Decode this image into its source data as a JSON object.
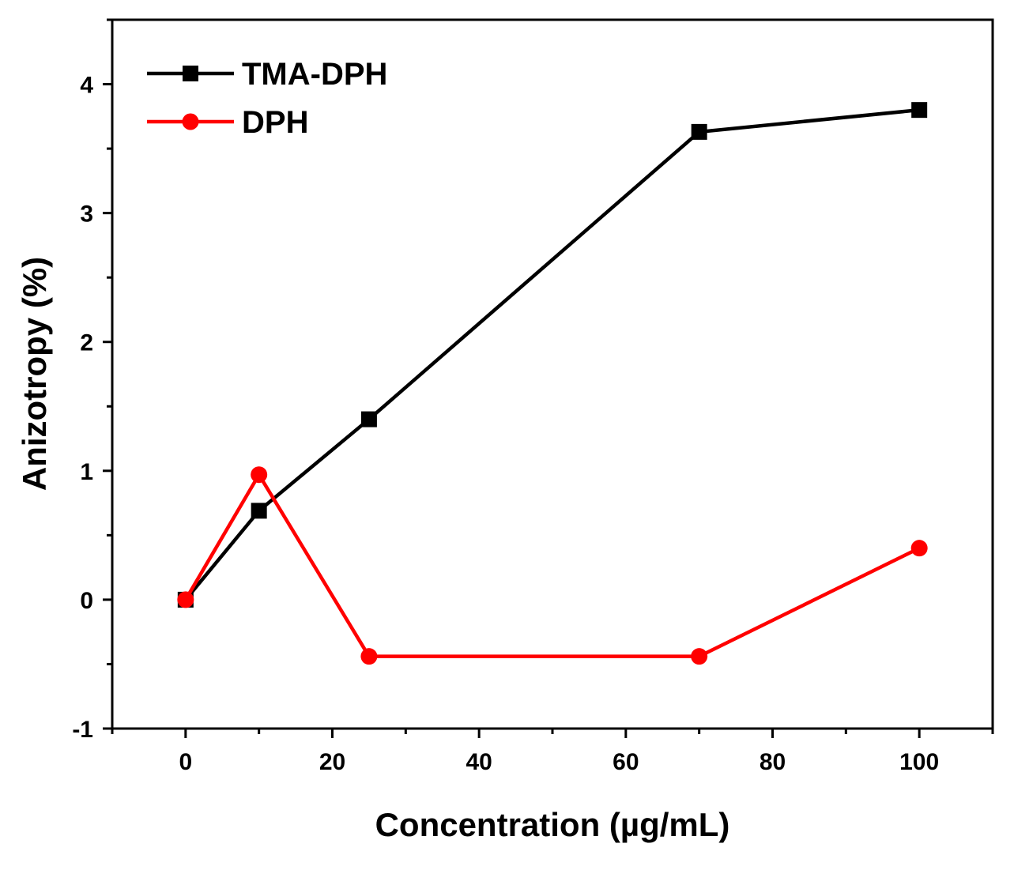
{
  "chart_data": {
    "type": "line",
    "title": "",
    "xlabel": "Concentration (µg/mL)",
    "ylabel": "Anizotropy (%)",
    "xlim": [
      -10,
      110
    ],
    "ylim": [
      -1,
      4.5
    ],
    "x_ticks": [
      0,
      20,
      40,
      60,
      80,
      100
    ],
    "x_tick_labels": [
      "0",
      "20",
      "40",
      "60",
      "80",
      "100"
    ],
    "y_ticks": [
      -1,
      0,
      1,
      2,
      3,
      4
    ],
    "y_tick_labels": [
      "-1",
      "0",
      "1",
      "2",
      "3",
      "4"
    ],
    "grid": false,
    "legend_position": "top-left",
    "series": [
      {
        "name": "TMA-DPH",
        "marker": "square",
        "color": "#000000",
        "x": [
          0,
          10,
          25,
          70,
          100
        ],
        "values": [
          0.0,
          0.69,
          1.4,
          3.63,
          3.8
        ]
      },
      {
        "name": "DPH",
        "marker": "circle",
        "color": "#ff0000",
        "x": [
          0,
          10,
          25,
          70,
          100
        ],
        "values": [
          0.0,
          0.97,
          -0.44,
          -0.44,
          0.4
        ]
      }
    ]
  }
}
